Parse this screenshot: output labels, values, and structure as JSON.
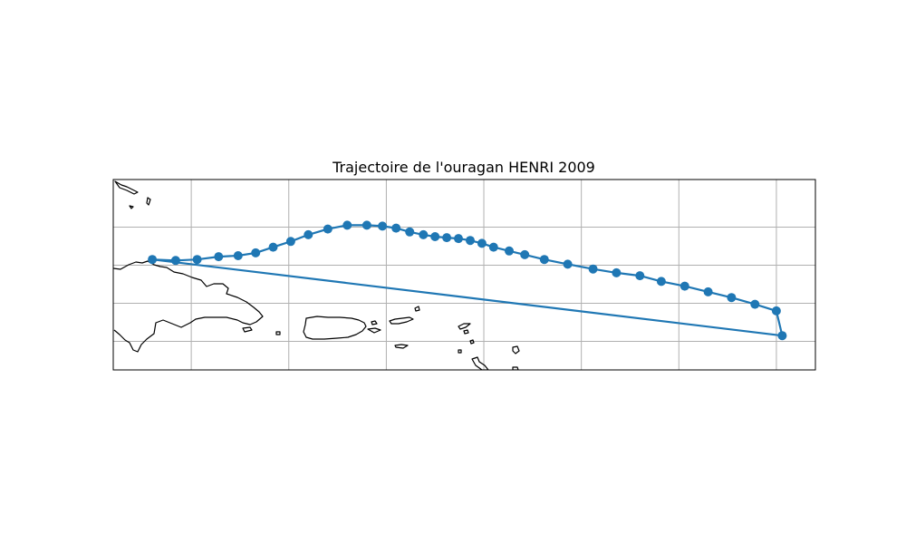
{
  "title": "Trajectoire de l'ouragan HENRI 2009",
  "map": {
    "projection": "PlateCarree",
    "extent_lon": [
      -72.0,
      -36.0
    ],
    "extent_lat": [
      15.5,
      25.5
    ],
    "gridlines": true,
    "gridline_lons": [
      -68,
      -63,
      -58,
      -53,
      -48,
      -43,
      -38
    ],
    "gridline_lats": [
      17,
      19,
      21,
      23
    ],
    "coastlines": true,
    "land_shown": [
      "Hispaniola",
      "Puerto Rico",
      "Virgin Islands",
      "Leeward Islands"
    ],
    "colors": {
      "track": "#1f77b4",
      "grid": "#b0b0b0",
      "coast": "#000000"
    }
  },
  "chart_data": {
    "type": "line",
    "title": "Trajectoire de l'ouragan HENRI 2009",
    "xlabel": "",
    "ylabel": "",
    "marker": "circle",
    "closed": true,
    "series": [
      {
        "lon": [
          -70.0,
          -68.8,
          -67.7,
          -66.6,
          -65.6,
          -64.7,
          -63.8,
          -62.9,
          -62.0,
          -61.0,
          -60.0,
          -59.0,
          -58.2,
          -57.5,
          -56.8,
          -56.1,
          -55.5,
          -54.9,
          -54.3,
          -53.7,
          -53.1,
          -52.5,
          -51.7,
          -50.9,
          -49.9,
          -48.7,
          -47.4,
          -46.2,
          -45.0,
          -43.9,
          -42.7,
          -41.5,
          -40.3,
          -39.1,
          -38.0,
          -37.7
        ],
        "lat": [
          21.3,
          21.25,
          21.3,
          21.45,
          21.5,
          21.65,
          21.95,
          22.25,
          22.6,
          22.9,
          23.1,
          23.1,
          23.05,
          22.95,
          22.75,
          22.6,
          22.5,
          22.45,
          22.4,
          22.3,
          22.15,
          21.95,
          21.75,
          21.55,
          21.3,
          21.05,
          20.8,
          20.6,
          20.45,
          20.15,
          19.9,
          19.6,
          19.3,
          18.95,
          18.6,
          17.3
        ]
      }
    ]
  }
}
